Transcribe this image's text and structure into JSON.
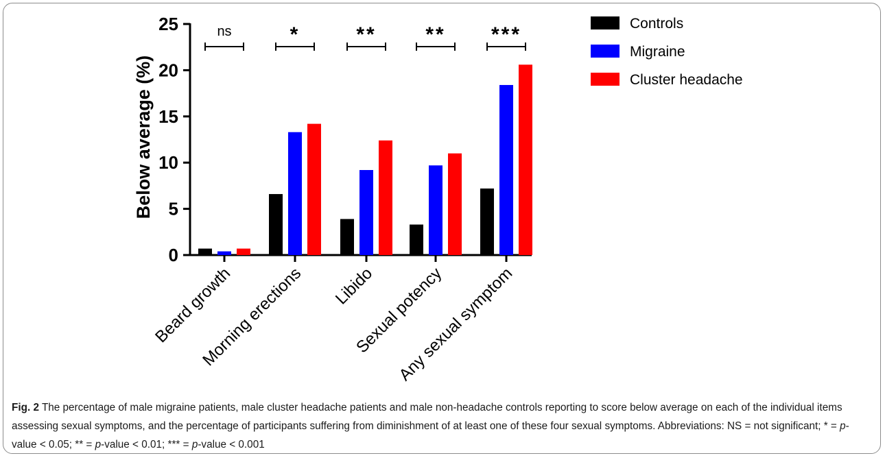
{
  "chart_data": {
    "type": "bar",
    "categories": [
      "Beard growth",
      "Morning erections",
      "Libido",
      "Sexual potency",
      "Any sexual symptom"
    ],
    "series": [
      {
        "name": "Controls",
        "color": "#000000",
        "values": [
          0.7,
          6.6,
          3.9,
          3.3,
          7.2
        ]
      },
      {
        "name": "Migraine",
        "color": "#0000ff",
        "values": [
          0.4,
          13.3,
          9.2,
          9.7,
          18.4
        ]
      },
      {
        "name": "Cluster headache",
        "color": "#ff0000",
        "values": [
          0.7,
          14.2,
          12.4,
          11.0,
          20.6
        ]
      }
    ],
    "significance": [
      "ns",
      "*",
      "**",
      "**",
      "***"
    ],
    "ylabel": "Below average  (%)",
    "xlabel": "",
    "ylim": [
      0,
      25
    ],
    "yticks": [
      "0",
      "5",
      "10",
      "15",
      "20",
      "25"
    ],
    "legend_position": "top-right",
    "grid": false
  },
  "caption": {
    "label": "Fig. 2",
    "text_1": "The percentage of male migraine patients, male cluster headache patients and male non-headache controls reporting to score below average on each of the individual items assessing sexual symptoms, and the percentage of participants suffering from diminishment of at least one of these four sexual symptoms. Abbreviations: NS = not significant; * = ",
    "p_1": "p",
    "text_2": "-value < 0.05; ** = ",
    "p_2": "p",
    "text_3": "-value < 0.01; *** = ",
    "p_3": "p",
    "text_4": "-value < 0.001"
  }
}
